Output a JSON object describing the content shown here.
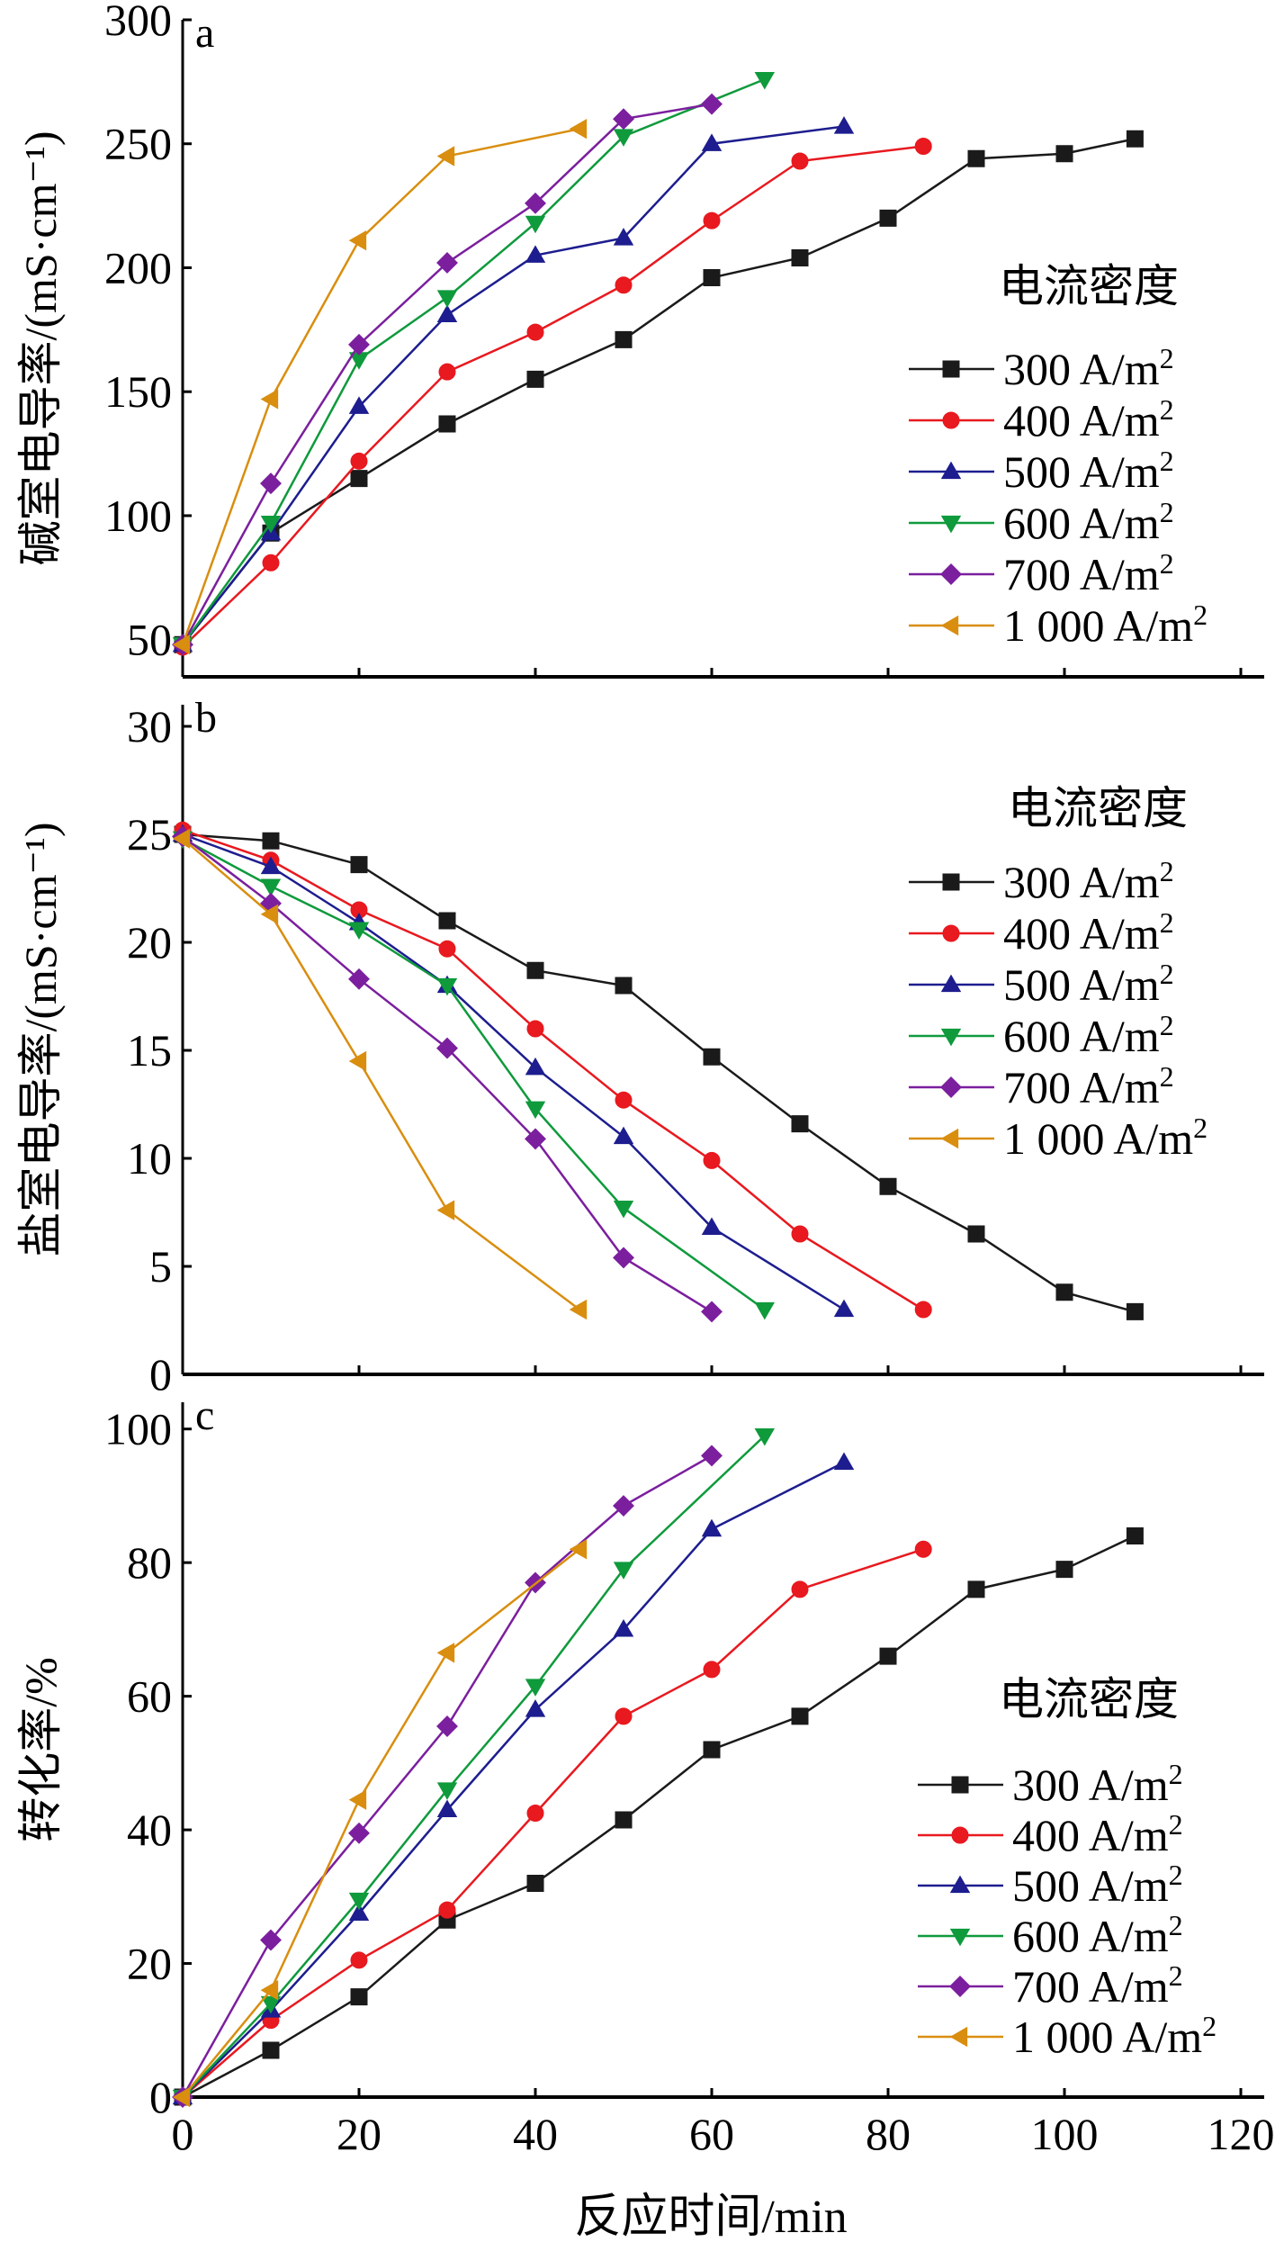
{
  "xaxis": {
    "label": "反应时间/min",
    "ticks": [
      0,
      20,
      40,
      60,
      80,
      100,
      120
    ],
    "lim": [
      0,
      120
    ]
  },
  "series_style": {
    "300 A/m2": {
      "color": "#1a1a1a",
      "marker": "square"
    },
    "400 A/m2": {
      "color": "#e8191f",
      "marker": "circle"
    },
    "500 A/m2": {
      "color": "#1d1d8f",
      "marker": "triangle-up"
    },
    "600 A/m2": {
      "color": "#0f9a3c",
      "marker": "triangle-down"
    },
    "700 A/m2": {
      "color": "#7b1f9e",
      "marker": "diamond"
    },
    "1 000 A/m2": {
      "color": "#d98e0f",
      "marker": "triangle-left"
    }
  },
  "chart_data": [
    {
      "panel_label": "a",
      "type": "line",
      "ylabel": "碱室电导率/(mS·cm⁻¹)",
      "ylim": [
        35,
        300
      ],
      "yticks": [
        50,
        100,
        150,
        200,
        250,
        300
      ],
      "xlim": [
        0,
        120
      ],
      "legend_title": "电流密度",
      "legend_placement": "right",
      "series": [
        {
          "name": "300 A/m2",
          "x": [
            0,
            10,
            20,
            30,
            40,
            50,
            60,
            70,
            80,
            90,
            100,
            108
          ],
          "y": [
            48,
            93,
            115,
            137,
            155,
            171,
            196,
            204,
            220,
            244,
            246,
            252
          ]
        },
        {
          "name": "400 A/m2",
          "x": [
            0,
            10,
            20,
            30,
            40,
            50,
            60,
            70,
            84
          ],
          "y": [
            47,
            81,
            122,
            158,
            174,
            193,
            219,
            243,
            249
          ]
        },
        {
          "name": "500 A/m2",
          "x": [
            0,
            10,
            20,
            30,
            40,
            50,
            60,
            75
          ],
          "y": [
            48,
            93,
            144,
            181,
            205,
            212,
            250,
            257
          ]
        },
        {
          "name": "600 A/m2",
          "x": [
            0,
            10,
            20,
            30,
            40,
            50,
            66
          ],
          "y": [
            48,
            97,
            163,
            188,
            218,
            253,
            276
          ]
        },
        {
          "name": "700 A/m2",
          "x": [
            0,
            10,
            20,
            30,
            40,
            50,
            60
          ],
          "y": [
            48,
            113,
            169,
            202,
            226,
            260,
            266
          ]
        },
        {
          "name": "1 000 A/m2",
          "x": [
            0,
            10,
            20,
            30,
            45
          ],
          "y": [
            48,
            147,
            211,
            245,
            256
          ]
        }
      ]
    },
    {
      "panel_label": "b",
      "type": "line",
      "ylabel": "盐室电导率/(mS·cm⁻¹)",
      "ylim": [
        0,
        31
      ],
      "yticks": [
        0,
        5,
        10,
        15,
        20,
        25,
        30
      ],
      "xlim": [
        0,
        120
      ],
      "legend_title": "电流密度",
      "legend_placement": "right",
      "series": [
        {
          "name": "300 A/m2",
          "x": [
            0,
            10,
            20,
            30,
            40,
            50,
            60,
            70,
            80,
            90,
            100,
            108
          ],
          "y": [
            25.0,
            24.7,
            23.6,
            21.0,
            18.7,
            18.0,
            14.7,
            11.6,
            8.7,
            6.5,
            3.8,
            2.9
          ]
        },
        {
          "name": "400 A/m2",
          "x": [
            0,
            10,
            20,
            30,
            40,
            50,
            60,
            70,
            84
          ],
          "y": [
            25.2,
            23.8,
            21.5,
            19.7,
            16.0,
            12.7,
            9.9,
            6.5,
            3.0
          ]
        },
        {
          "name": "500 A/m2",
          "x": [
            0,
            10,
            20,
            30,
            40,
            50,
            60,
            75
          ],
          "y": [
            25.0,
            23.5,
            20.9,
            18.0,
            14.2,
            11.0,
            6.8,
            3.0
          ]
        },
        {
          "name": "600 A/m2",
          "x": [
            0,
            10,
            20,
            30,
            40,
            50,
            66
          ],
          "y": [
            24.8,
            22.6,
            20.6,
            18.0,
            12.3,
            7.7,
            3.0
          ]
        },
        {
          "name": "700 A/m2",
          "x": [
            0,
            10,
            20,
            30,
            40,
            50,
            60
          ],
          "y": [
            24.9,
            21.8,
            18.3,
            15.1,
            10.9,
            5.4,
            2.9
          ]
        },
        {
          "name": "1 000 A/m2",
          "x": [
            0,
            10,
            20,
            30,
            45
          ],
          "y": [
            24.8,
            21.3,
            14.5,
            7.6,
            3.0
          ]
        }
      ]
    },
    {
      "panel_label": "c",
      "type": "line",
      "ylabel": "转化率/%",
      "ylim": [
        0,
        104
      ],
      "yticks": [
        0,
        20,
        40,
        60,
        80,
        100
      ],
      "xlim": [
        0,
        120
      ],
      "legend_title": "电流密度",
      "legend_placement": "bottom-right",
      "series": [
        {
          "name": "300 A/m2",
          "x": [
            0,
            10,
            20,
            30,
            40,
            50,
            60,
            70,
            80,
            90,
            100,
            108
          ],
          "y": [
            0,
            7,
            15,
            26.5,
            32,
            41.5,
            52,
            57,
            66,
            76,
            79,
            84
          ]
        },
        {
          "name": "400 A/m2",
          "x": [
            0,
            10,
            20,
            30,
            40,
            50,
            60,
            70,
            84
          ],
          "y": [
            0,
            11.5,
            20.5,
            28,
            42.5,
            57,
            64,
            76,
            82
          ]
        },
        {
          "name": "500 A/m2",
          "x": [
            0,
            10,
            20,
            30,
            40,
            50,
            60,
            75
          ],
          "y": [
            0,
            13,
            27.5,
            43,
            58,
            70,
            85,
            95
          ]
        },
        {
          "name": "600 A/m2",
          "x": [
            0,
            10,
            20,
            30,
            40,
            50,
            66
          ],
          "y": [
            0,
            14,
            29.5,
            46,
            61.5,
            79,
            99
          ]
        },
        {
          "name": "700 A/m2",
          "x": [
            0,
            10,
            20,
            30,
            40,
            50,
            60
          ],
          "y": [
            0,
            23.5,
            39.5,
            55.5,
            77,
            88.5,
            96
          ]
        },
        {
          "name": "1 000 A/m2",
          "x": [
            0,
            10,
            20,
            30,
            45
          ],
          "y": [
            0,
            16,
            44.5,
            66.5,
            82
          ]
        }
      ]
    }
  ]
}
